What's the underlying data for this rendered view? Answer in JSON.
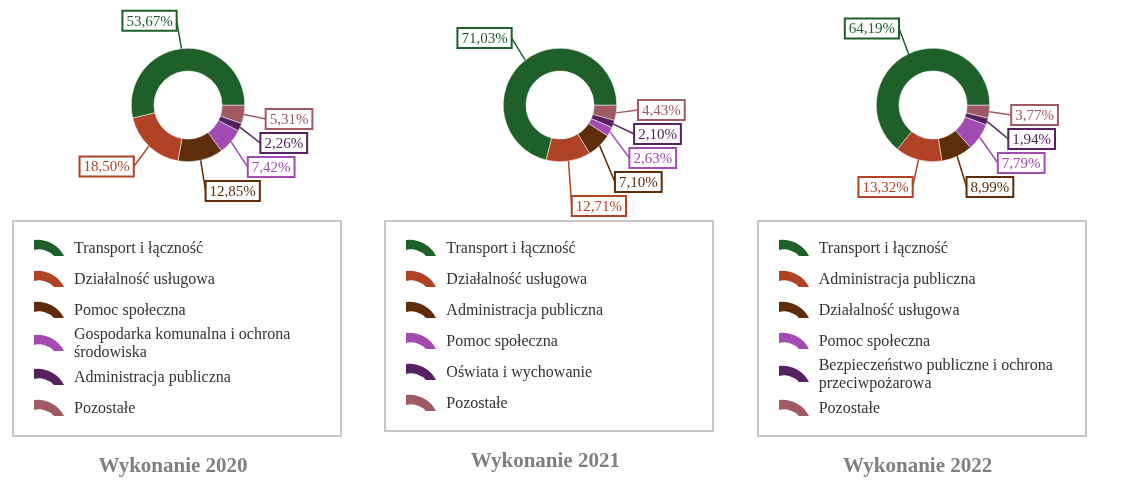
{
  "chart_data": [
    {
      "type": "donut",
      "title": "Wykonanie 2020",
      "legend": "bottom",
      "categories": [
        "Transport i łączność",
        "Działalność usługowa",
        "Pomoc społeczna",
        "Gospodarka komunalna i ochrona środowiska",
        "Administracja publiczna",
        "Pozostałe"
      ],
      "values": [
        53.67,
        18.5,
        12.85,
        7.42,
        2.26,
        5.31
      ],
      "value_labels": [
        "53,67%",
        "18,50%",
        "12,85%",
        "7,42%",
        "2,26%",
        "5,31%"
      ],
      "colors": [
        "#1e5f2a",
        "#b04326",
        "#5e2d0a",
        "#a24bb3",
        "#55215e",
        "#a05a63"
      ]
    },
    {
      "type": "donut",
      "title": "Wykonanie 2021",
      "legend": "bottom",
      "categories": [
        "Transport i łączność",
        "Działalność usługowa",
        "Administracja publiczna",
        "Pomoc społeczna",
        "Oświata i wychowanie",
        "Pozostałe"
      ],
      "values": [
        71.03,
        12.71,
        7.1,
        2.63,
        2.1,
        4.43
      ],
      "value_labels": [
        "71,03%",
        "12,71%",
        "7,10%",
        "2,63%",
        "2,10%",
        "4,43%"
      ],
      "colors": [
        "#1e5f2a",
        "#b04326",
        "#5e2d0a",
        "#a24bb3",
        "#55215e",
        "#a05a63"
      ]
    },
    {
      "type": "donut",
      "title": "Wykonanie 2022",
      "legend": "bottom",
      "categories": [
        "Transport i łączność",
        "Administracja publiczna",
        "Działalność usługowa",
        "Pomoc społeczna",
        "Bezpieczeństwo publiczne i ochrona przeciwpożarowa",
        "Pozostałe"
      ],
      "values": [
        64.19,
        13.32,
        8.99,
        7.79,
        1.94,
        3.77
      ],
      "value_labels": [
        "64,19%",
        "13,32%",
        "8,99%",
        "7,79%",
        "1,94%",
        "3,77%"
      ],
      "colors": [
        "#1e5f2a",
        "#b04326",
        "#5e2d0a",
        "#a24bb3",
        "#55215e",
        "#a05a63"
      ]
    }
  ]
}
